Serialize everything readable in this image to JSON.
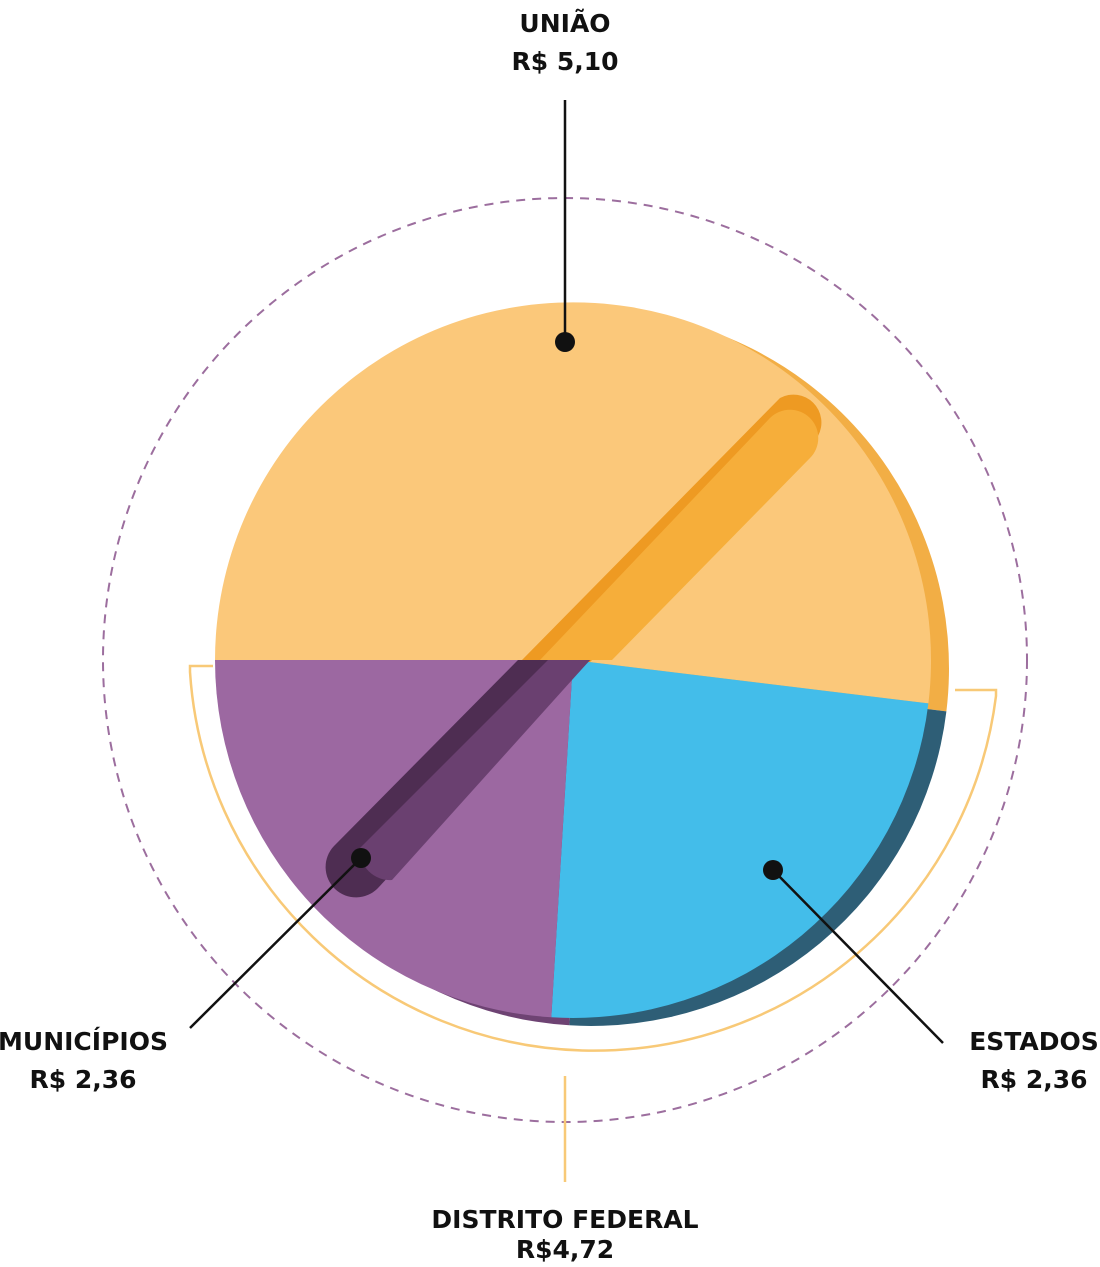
{
  "chart_data": {
    "type": "pie",
    "title": "",
    "slices": [
      {
        "label": "UNIÃO",
        "value_label": "R$ 5,10",
        "value": 5.1,
        "color": "#FBC87A",
        "shade": "#F2AE45"
      },
      {
        "label": "ESTADOS",
        "value_label": "R$ 2,36",
        "value": 2.36,
        "color": "#43BDEA",
        "shade": "#2E5E76"
      },
      {
        "label": "MUNICÍPIOS",
        "value_label": "R$ 2,36",
        "value": 2.36,
        "color": "#9C68A1",
        "shade": "#6E4373"
      }
    ],
    "group": {
      "label": "DISTRITO FEDERAL",
      "value_label": "R$4,72",
      "value": 4.72,
      "members": [
        "ESTADOS",
        "MUNICÍPIOS"
      ],
      "color": "#F8C977"
    },
    "outer_ring_color": "#9C6E9E",
    "leader_color": "#111111"
  }
}
